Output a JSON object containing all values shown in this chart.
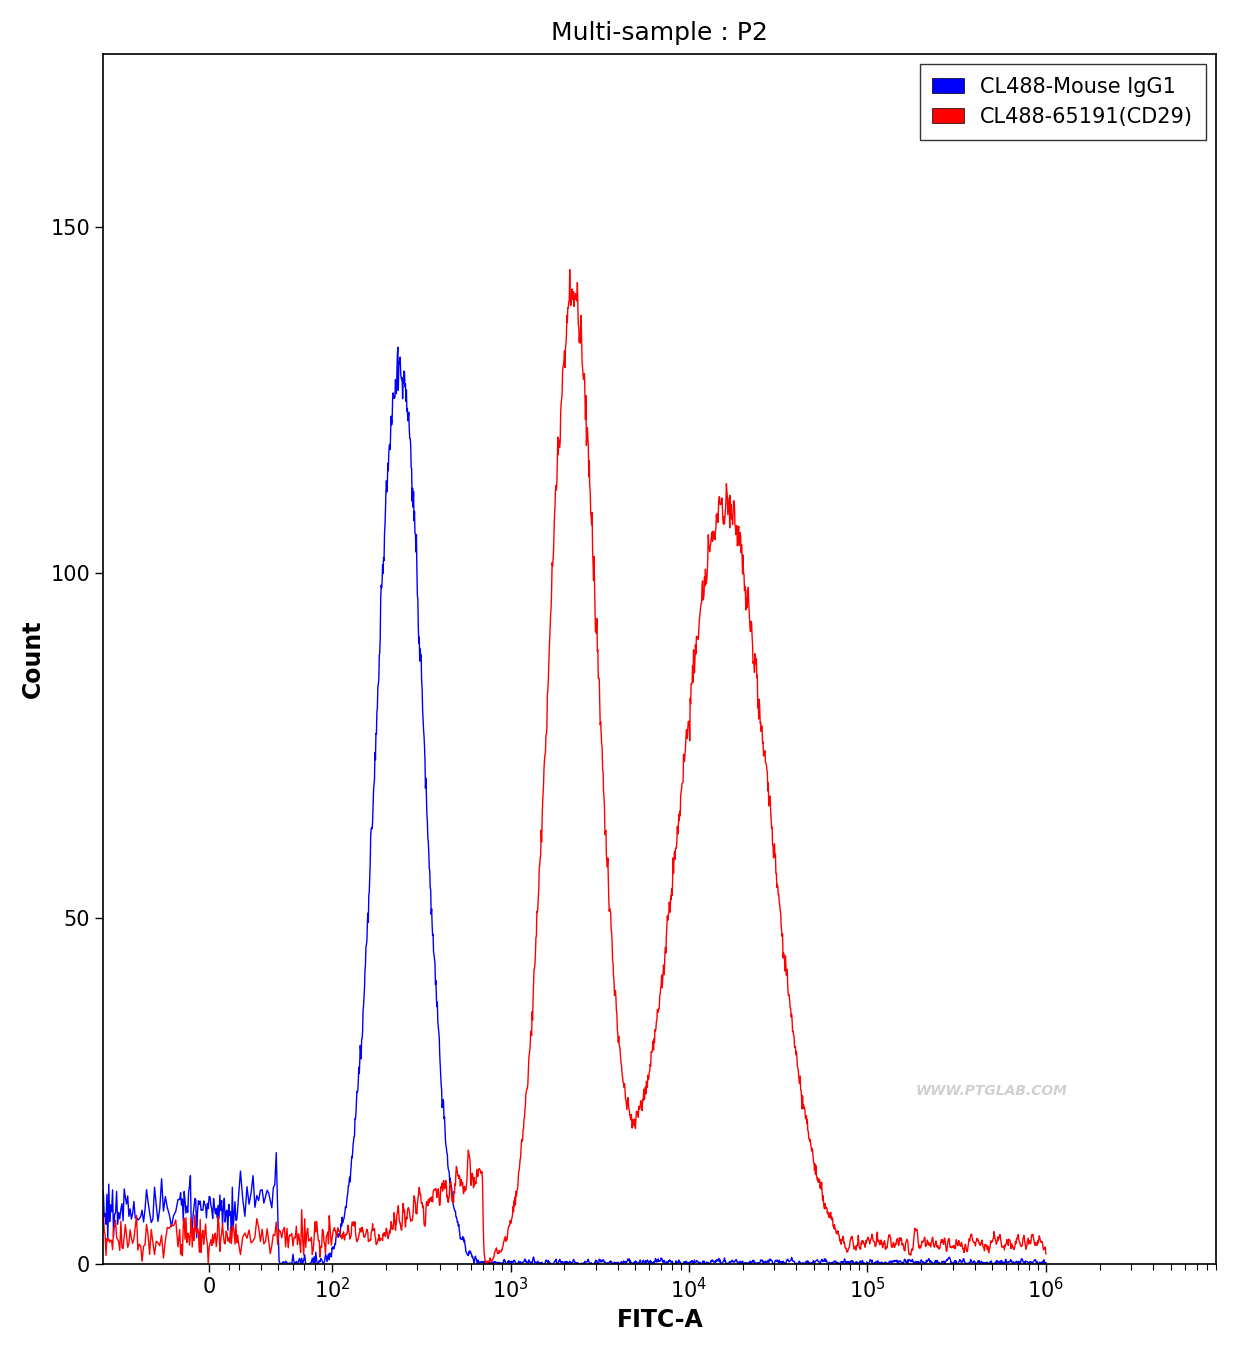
{
  "title": "Multi-sample : P2",
  "xlabel": "FITC-A",
  "ylabel": "Count",
  "ylim": [
    0,
    175
  ],
  "yticks": [
    0,
    50,
    100,
    150
  ],
  "legend_labels": [
    "CL488-Mouse IgG1",
    "CL488-65191(CD29)"
  ],
  "legend_colors": [
    "#0000ff",
    "#ff0000"
  ],
  "background_color": "#ffffff",
  "title_fontsize": 18,
  "label_fontsize": 17,
  "tick_fontsize": 15,
  "legend_fontsize": 15,
  "watermark": "WWW.PTGLAB.COM",
  "linthresh": 30,
  "linscale": 0.15
}
